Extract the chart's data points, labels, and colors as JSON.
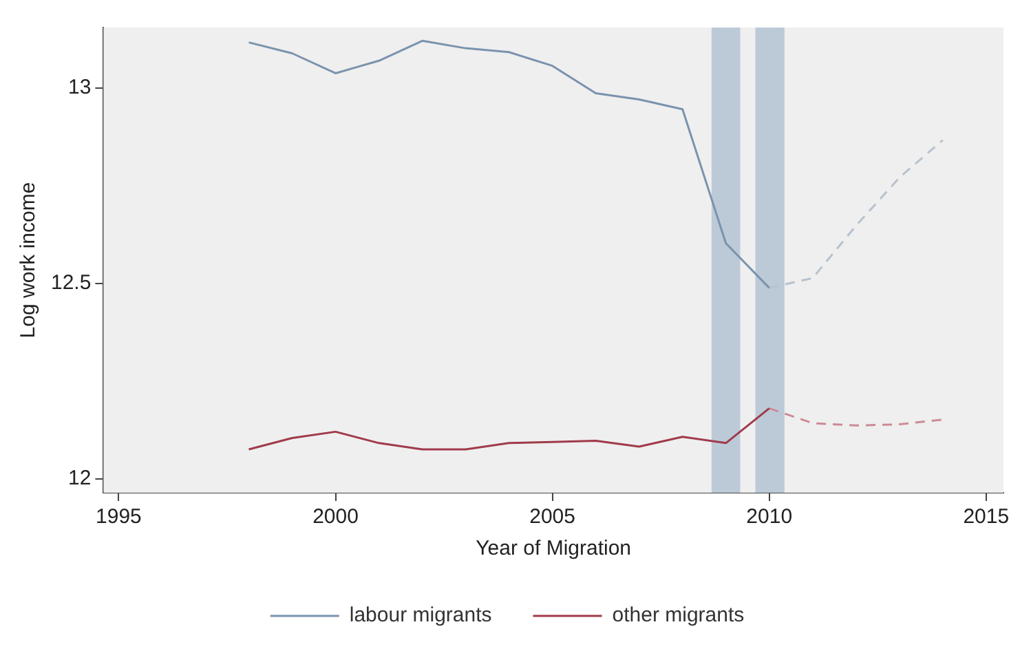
{
  "chart_data": {
    "type": "line",
    "xlabel": "Year of Migration",
    "ylabel": "Log work income",
    "xlim": [
      1994.65,
      2015.4
    ],
    "ylim": [
      11.965,
      13.155
    ],
    "xticks": [
      1995,
      2000,
      2005,
      2010,
      2015
    ],
    "yticks": [
      12,
      {
        "value": 12.5,
        "label": "12.5"
      },
      13
    ],
    "legend": "bottom",
    "marker": "none",
    "series": [
      {
        "name": "labour migrants",
        "color": "#7a93ad",
        "line_style": "solid",
        "x": [
          1998,
          1999,
          2000,
          2001,
          2002,
          2003,
          2004,
          2005,
          2006,
          2007,
          2008,
          2009,
          2010
        ],
        "values": [
          13.117,
          13.089,
          13.038,
          13.07,
          13.121,
          13.102,
          13.092,
          13.057,
          12.987,
          12.971,
          12.946,
          12.603,
          12.489
        ]
      },
      {
        "name": "other migrants",
        "color": "#a03a4a",
        "line_style": "solid",
        "x": [
          1998,
          1999,
          2000,
          2001,
          2002,
          2003,
          2004,
          2005,
          2006,
          2007,
          2008,
          2009,
          2010
        ],
        "values": [
          12.076,
          12.105,
          12.121,
          12.092,
          12.076,
          12.076,
          12.092,
          12.095,
          12.098,
          12.083,
          12.108,
          12.092,
          12.181
        ]
      },
      {
        "color": "#b7c2ce",
        "line_style": "dashed",
        "x": [
          2010,
          2011,
          2012,
          2013,
          2014
        ],
        "values": [
          12.489,
          12.514,
          12.648,
          12.771,
          12.867
        ]
      },
      {
        "color": "#cc8b95",
        "line_style": "dashed",
        "x": [
          2010,
          2011,
          2012,
          2013,
          2014
        ],
        "values": [
          12.181,
          12.143,
          12.137,
          12.14,
          12.152
        ]
      }
    ],
    "bands": [
      {
        "axis": "x",
        "from": 2008.67,
        "to": 2009.33,
        "color": "#bccad8"
      },
      {
        "axis": "x",
        "from": 2009.68,
        "to": 2010.35,
        "color": "#bccad8"
      }
    ]
  }
}
